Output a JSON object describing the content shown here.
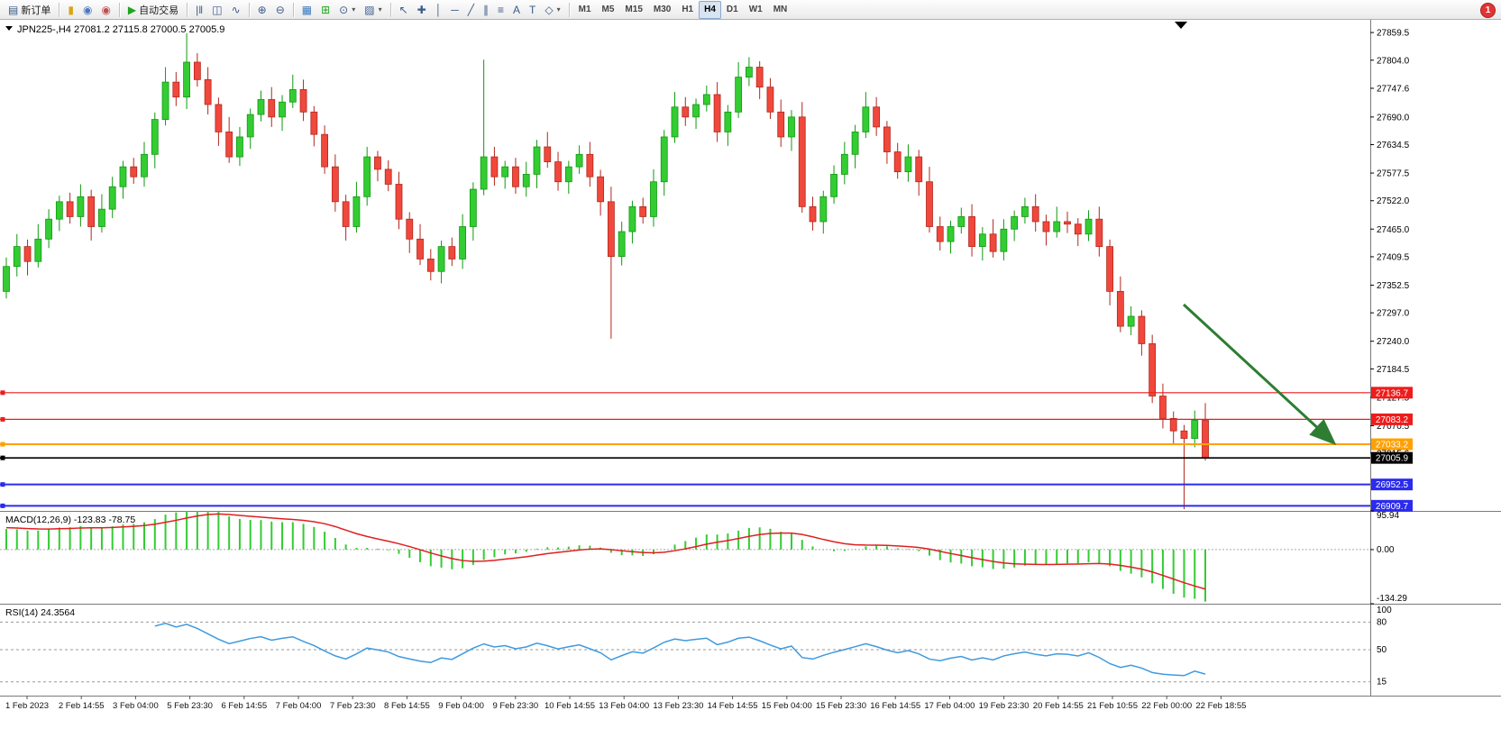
{
  "toolbar": {
    "groups": [
      {
        "items": [
          {
            "name": "new-order-button",
            "glyph": "▤",
            "label": "新订单"
          }
        ]
      },
      {
        "items": [
          {
            "name": "gold-icon",
            "glyph": "▮",
            "color": "#d9a41a"
          },
          {
            "name": "profile-icon",
            "glyph": "◉",
            "color": "#4a78c0"
          },
          {
            "name": "community-icon",
            "glyph": "◉",
            "color": "#c05050"
          }
        ]
      },
      {
        "items": [
          {
            "name": "auto-trading-button",
            "glyph": "▶",
            "label": "自动交易",
            "color": "#1fa51f"
          }
        ]
      },
      {
        "items": [
          {
            "name": "bar-chart-icon",
            "glyph": "|‖"
          },
          {
            "name": "candlestick-chart-icon",
            "glyph": "◫"
          },
          {
            "name": "line-chart-icon",
            "glyph": "∿"
          }
        ]
      },
      {
        "items": [
          {
            "name": "zoom-in-icon",
            "glyph": "⊕"
          },
          {
            "name": "zoom-out-icon",
            "glyph": "⊖"
          }
        ]
      },
      {
        "items": [
          {
            "name": "tile-windows-icon",
            "glyph": "▦",
            "color": "#3d7bbf"
          },
          {
            "name": "indicators-icon",
            "glyph": "⊞",
            "color": "#1fa51f"
          },
          {
            "name": "period-icon",
            "glyph": "⊙",
            "caret": true
          },
          {
            "name": "template-icon",
            "glyph": "▨",
            "caret": true
          }
        ]
      },
      {
        "items": [
          {
            "name": "cursor-icon",
            "glyph": "↖"
          },
          {
            "name": "crosshair-icon",
            "glyph": "✚"
          },
          {
            "name": "vertical-line-icon",
            "glyph": "│"
          },
          {
            "name": "horizontal-line-icon",
            "glyph": "─"
          },
          {
            "name": "trendline-icon",
            "glyph": "╱"
          },
          {
            "name": "channel-icon",
            "glyph": "∥"
          },
          {
            "name": "fibonacci-icon",
            "glyph": "≡"
          },
          {
            "name": "text-icon",
            "glyph": "A"
          },
          {
            "name": "label-icon",
            "glyph": "T"
          },
          {
            "name": "shapes-icon",
            "glyph": "◇",
            "caret": true
          }
        ]
      },
      {
        "items": [
          {
            "name": "timeframe-m1",
            "label": "M1",
            "tf": true
          },
          {
            "name": "timeframe-m5",
            "label": "M5",
            "tf": true
          },
          {
            "name": "timeframe-m15",
            "label": "M15",
            "tf": true
          },
          {
            "name": "timeframe-m30",
            "label": "M30",
            "tf": true
          },
          {
            "name": "timeframe-h1",
            "label": "H1",
            "tf": true
          },
          {
            "name": "timeframe-h4",
            "label": "H4",
            "tf": true,
            "active": true
          },
          {
            "name": "timeframe-d1",
            "label": "D1",
            "tf": true
          },
          {
            "name": "timeframe-w1",
            "label": "W1",
            "tf": true
          },
          {
            "name": "timeframe-mn",
            "label": "MN",
            "tf": true
          }
        ]
      }
    ]
  },
  "notifications": {
    "count": "1"
  },
  "chart": {
    "title": "JPN225-,H4  27081.2 27115.8 27000.5 27005.9",
    "colors": {
      "bull": "#33cc33",
      "bull_stroke": "#0f9a0f",
      "bear": "#f0483c",
      "bear_stroke": "#b3271d",
      "macd_hist": "#33cc33",
      "macd_signal": "#e02020",
      "rsi_line": "#3e9adf",
      "arrow": "#2e7d32"
    }
  },
  "price_axis": {
    "ticks": [
      "27859.5",
      "27804.0",
      "27747.6",
      "27690.0",
      "27634.5",
      "27577.5",
      "27522.0",
      "27465.0",
      "27409.5",
      "27352.5",
      "27297.0",
      "27240.0",
      "27184.5",
      "27127.5",
      "27070.5",
      "27015.6"
    ]
  },
  "lines": [
    {
      "name": "resistance-line-1",
      "value": 27136.7,
      "label": "27136.7",
      "color": "#ee1c1c",
      "width": 1.2
    },
    {
      "name": "resistance-line-2",
      "value": 27083.2,
      "label": "27083.2",
      "color": "#ee1c1c",
      "width": 1.2
    },
    {
      "name": "orange-support-line",
      "value": 27033.2,
      "label": "27033.2",
      "color": "#ffa000",
      "width": 2
    },
    {
      "name": "current-price-line",
      "value": 27005.9,
      "label": "27005.9",
      "color": "#000000",
      "width": 1.6
    },
    {
      "name": "support-line-1",
      "value": 26952.5,
      "label": "26952.5",
      "color": "#2b2bee",
      "width": 2
    },
    {
      "name": "support-line-2",
      "value": 26909.7,
      "label": "26909.7",
      "color": "#2b2bee",
      "width": 2
    }
  ],
  "macd": {
    "label": "MACD(12,26,9) -123.83 -78.75",
    "axis": [
      "95.94",
      "0.00",
      "-134.29"
    ]
  },
  "rsi": {
    "label": "RSI(14) 24.3564",
    "axis": [
      "100",
      "80",
      "50",
      "15"
    ],
    "levels": [
      80,
      50,
      15
    ]
  },
  "time_axis": {
    "labels": [
      "1 Feb 2023",
      "2 Feb 14:55",
      "3 Feb 04:00",
      "5 Feb 23:30",
      "6 Feb 14:55",
      "7 Feb 04:00",
      "7 Feb 23:30",
      "8 Feb 14:55",
      "9 Feb 04:00",
      "9 Feb 23:30",
      "10 Feb 14:55",
      "13 Feb 04:00",
      "13 Feb 23:30",
      "14 Feb 14:55",
      "15 Feb 04:00",
      "15 Feb 23:30",
      "16 Feb 14:55",
      "17 Feb 04:00",
      "19 Feb 23:30",
      "20 Feb 14:55",
      "21 Feb 10:55",
      "22 Feb 00:00",
      "22 Feb 18:55"
    ]
  },
  "chart_data": {
    "type": "candlestick",
    "symbol": "JPN225-",
    "timeframe": "H4",
    "last_ohlc": {
      "open": 27081.2,
      "high": 27115.8,
      "low": 27000.5,
      "close": 27005.9
    },
    "ylim": [
      26890,
      27885
    ],
    "indicators": [
      {
        "name": "MACD",
        "params": [
          12,
          26,
          9
        ],
        "last_values": [
          -123.83,
          -78.75
        ],
        "axis_range": [
          -134.29,
          95.94
        ]
      },
      {
        "name": "RSI",
        "params": [
          14
        ],
        "last_value": 24.3564,
        "axis_range": [
          0,
          100
        ]
      }
    ],
    "candles": [
      [
        27340,
        27408,
        27326,
        27390
      ],
      [
        27390,
        27455,
        27370,
        27430
      ],
      [
        27430,
        27444,
        27372,
        27400
      ],
      [
        27400,
        27475,
        27388,
        27445
      ],
      [
        27445,
        27505,
        27427,
        27485
      ],
      [
        27485,
        27532,
        27461,
        27520
      ],
      [
        27520,
        27538,
        27476,
        27490
      ],
      [
        27490,
        27555,
        27470,
        27530
      ],
      [
        27530,
        27544,
        27442,
        27470
      ],
      [
        27470,
        27535,
        27458,
        27505
      ],
      [
        27505,
        27570,
        27487,
        27550
      ],
      [
        27550,
        27602,
        27526,
        27590
      ],
      [
        27590,
        27608,
        27556,
        27570
      ],
      [
        27570,
        27640,
        27550,
        27615
      ],
      [
        27615,
        27699,
        27587,
        27685
      ],
      [
        27685,
        27790,
        27673,
        27760
      ],
      [
        27760,
        27780,
        27712,
        27730
      ],
      [
        27730,
        27858,
        27706,
        27800
      ],
      [
        27800,
        27818,
        27751,
        27765
      ],
      [
        27765,
        27790,
        27695,
        27715
      ],
      [
        27715,
        27729,
        27632,
        27660
      ],
      [
        27660,
        27690,
        27598,
        27610
      ],
      [
        27610,
        27670,
        27592,
        27650
      ],
      [
        27650,
        27707,
        27626,
        27695
      ],
      [
        27695,
        27743,
        27681,
        27725
      ],
      [
        27725,
        27750,
        27670,
        27690
      ],
      [
        27690,
        27734,
        27662,
        27720
      ],
      [
        27720,
        27775,
        27708,
        27745
      ],
      [
        27745,
        27765,
        27682,
        27700
      ],
      [
        27700,
        27712,
        27631,
        27655
      ],
      [
        27655,
        27673,
        27576,
        27590
      ],
      [
        27590,
        27615,
        27500,
        27520
      ],
      [
        27520,
        27534,
        27442,
        27470
      ],
      [
        27470,
        27560,
        27458,
        27530
      ],
      [
        27530,
        27630,
        27512,
        27610
      ],
      [
        27610,
        27622,
        27561,
        27585
      ],
      [
        27585,
        27603,
        27541,
        27555
      ],
      [
        27555,
        27580,
        27465,
        27485
      ],
      [
        27485,
        27499,
        27417,
        27445
      ],
      [
        27445,
        27475,
        27393,
        27405
      ],
      [
        27405,
        27425,
        27362,
        27380
      ],
      [
        27380,
        27442,
        27356,
        27430
      ],
      [
        27430,
        27448,
        27391,
        27405
      ],
      [
        27405,
        27495,
        27385,
        27470
      ],
      [
        27470,
        27559,
        27442,
        27545
      ],
      [
        27545,
        27805,
        27533,
        27610
      ],
      [
        27610,
        27630,
        27552,
        27570
      ],
      [
        27570,
        27602,
        27546,
        27590
      ],
      [
        27590,
        27608,
        27536,
        27550
      ],
      [
        27550,
        27600,
        27530,
        27575
      ],
      [
        27575,
        27644,
        27547,
        27630
      ],
      [
        27630,
        27660,
        27588,
        27600
      ],
      [
        27600,
        27620,
        27542,
        27560
      ],
      [
        27560,
        27602,
        27536,
        27590
      ],
      [
        27590,
        27633,
        27576,
        27615
      ],
      [
        27615,
        27640,
        27550,
        27570
      ],
      [
        27570,
        27584,
        27492,
        27520
      ],
      [
        27520,
        27550,
        27245,
        27410
      ],
      [
        27410,
        27480,
        27392,
        27460
      ],
      [
        27460,
        27522,
        27436,
        27510
      ],
      [
        27510,
        27528,
        27476,
        27490
      ],
      [
        27490,
        27585,
        27470,
        27560
      ],
      [
        27560,
        27664,
        27532,
        27650
      ],
      [
        27650,
        27740,
        27638,
        27710
      ],
      [
        27710,
        27730,
        27672,
        27690
      ],
      [
        27690,
        27727,
        27666,
        27715
      ],
      [
        27715,
        27753,
        27701,
        27735
      ],
      [
        27735,
        27760,
        27640,
        27660
      ],
      [
        27660,
        27714,
        27632,
        27700
      ],
      [
        27700,
        27800,
        27688,
        27770
      ],
      [
        27770,
        27810,
        27752,
        27790
      ],
      [
        27790,
        27802,
        27726,
        27750
      ],
      [
        27750,
        27768,
        27686,
        27700
      ],
      [
        27700,
        27725,
        27630,
        27650
      ],
      [
        27650,
        27704,
        27622,
        27690
      ],
      [
        27690,
        27720,
        27498,
        27510
      ],
      [
        27510,
        27530,
        27462,
        27480
      ],
      [
        27480,
        27542,
        27456,
        27530
      ],
      [
        27530,
        27593,
        27516,
        27575
      ],
      [
        27575,
        27640,
        27555,
        27615
      ],
      [
        27615,
        27674,
        27587,
        27660
      ],
      [
        27660,
        27740,
        27648,
        27710
      ],
      [
        27710,
        27730,
        27652,
        27670
      ],
      [
        27670,
        27682,
        27596,
        27620
      ],
      [
        27620,
        27638,
        27566,
        27580
      ],
      [
        27580,
        27635,
        27560,
        27610
      ],
      [
        27610,
        27624,
        27532,
        27560
      ],
      [
        27560,
        27590,
        27458,
        27470
      ],
      [
        27470,
        27490,
        27422,
        27440
      ],
      [
        27440,
        27482,
        27416,
        27470
      ],
      [
        27470,
        27508,
        27456,
        27490
      ],
      [
        27490,
        27515,
        27410,
        27430
      ],
      [
        27430,
        27469,
        27402,
        27455
      ],
      [
        27455,
        27485,
        27408,
        27420
      ],
      [
        27420,
        27485,
        27402,
        27465
      ],
      [
        27465,
        27502,
        27441,
        27490
      ],
      [
        27490,
        27528,
        27476,
        27510
      ],
      [
        27510,
        27535,
        27460,
        27480
      ],
      [
        27480,
        27494,
        27432,
        27460
      ],
      [
        27460,
        27510,
        27448,
        27480
      ],
      [
        27480,
        27500,
        27457,
        27475
      ],
      [
        27475,
        27487,
        27431,
        27455
      ],
      [
        27455,
        27503,
        27441,
        27485
      ],
      [
        27485,
        27510,
        27410,
        27430
      ],
      [
        27430,
        27444,
        27312,
        27340
      ],
      [
        27340,
        27370,
        27258,
        27270
      ],
      [
        27270,
        27310,
        27252,
        27290
      ],
      [
        27290,
        27302,
        27211,
        27235
      ],
      [
        27235,
        27253,
        27116,
        27130
      ],
      [
        27130,
        27155,
        27065,
        27085
      ],
      [
        27085,
        27099,
        27032,
        27060
      ],
      [
        27060,
        27072,
        26903,
        27045
      ],
      [
        27045,
        27101,
        27027,
        27081.2
      ],
      [
        27081.2,
        27115.8,
        27000.5,
        27005.9
      ]
    ]
  }
}
